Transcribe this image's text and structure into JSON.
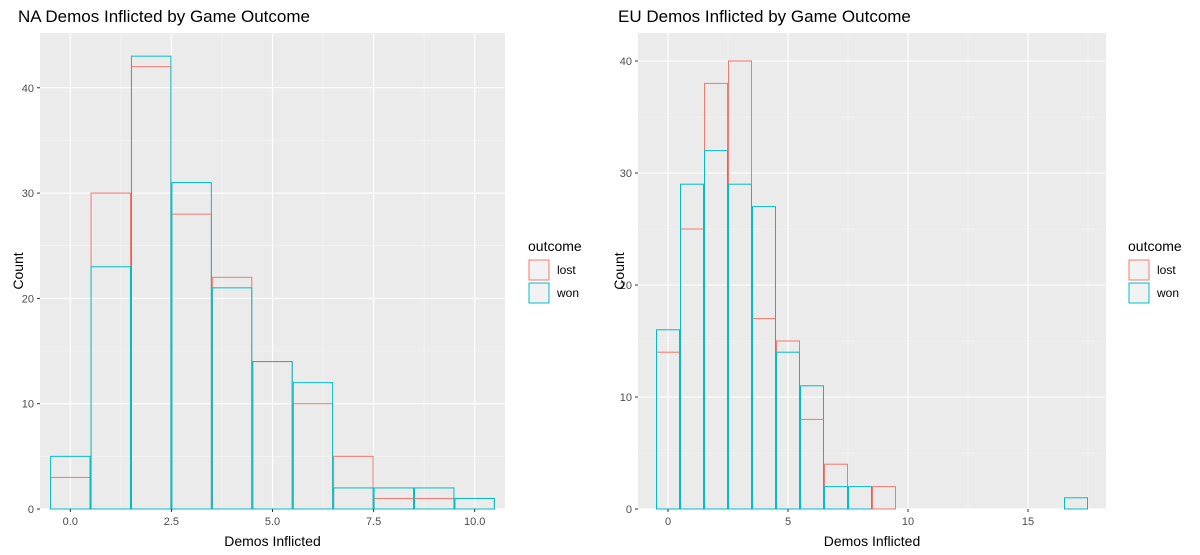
{
  "colors": {
    "panel": "#ebebeb",
    "grid_major": "#ffffff",
    "grid_minor": "#f5f5f5",
    "lost": "#f8766d",
    "won": "#00bfc4",
    "legend_key_fill": "#f2f2f2"
  },
  "legend": {
    "title": "outcome",
    "labels": [
      "lost",
      "won"
    ],
    "placement": "right"
  },
  "chart_data": [
    {
      "type": "bar",
      "title": "NA Demos Inflicted by Game Outcome",
      "xlabel": "Demos Inflicted",
      "ylabel": "Count",
      "xlim": [
        -0.75,
        10.75
      ],
      "ylim": [
        0,
        45.2
      ],
      "x_ticks": [
        0,
        2.5,
        5,
        7.5,
        10
      ],
      "x_tick_labels": [
        "0.0",
        "2.5",
        "5.0",
        "7.5",
        "10.0"
      ],
      "y_ticks": [
        0,
        10,
        20,
        30,
        40
      ],
      "y_tick_labels": [
        "0",
        "10",
        "20",
        "30",
        "40"
      ],
      "bins": [
        0,
        1,
        2,
        3,
        4,
        5,
        6,
        7,
        8,
        9,
        10
      ],
      "series": [
        {
          "name": "lost",
          "values": [
            3,
            30,
            42,
            28,
            22,
            14,
            10,
            5,
            1,
            1,
            1
          ]
        },
        {
          "name": "won",
          "values": [
            5,
            23,
            43,
            31,
            21,
            14,
            12,
            2,
            2,
            2,
            1
          ]
        }
      ]
    },
    {
      "type": "bar",
      "title": "EU Demos Inflicted by Game Outcome",
      "xlabel": "Demos Inflicted",
      "ylabel": "Count",
      "xlim": [
        -1.25,
        18.25
      ],
      "ylim": [
        0,
        42.5
      ],
      "x_ticks": [
        0,
        5,
        10,
        15
      ],
      "x_tick_labels": [
        "0",
        "5",
        "10",
        "15"
      ],
      "y_ticks": [
        0,
        10,
        20,
        30,
        40
      ],
      "y_tick_labels": [
        "0",
        "10",
        "20",
        "30",
        "40"
      ],
      "bins": [
        0,
        1,
        2,
        3,
        4,
        5,
        6,
        7,
        8,
        9,
        10,
        11,
        12,
        13,
        14,
        15,
        16,
        17
      ],
      "series": [
        {
          "name": "lost",
          "values": [
            14,
            25,
            38,
            40,
            17,
            15,
            8,
            4,
            0,
            2,
            0,
            0,
            0,
            0,
            0,
            0,
            0,
            0
          ]
        },
        {
          "name": "won",
          "values": [
            16,
            29,
            32,
            29,
            27,
            14,
            11,
            2,
            2,
            0,
            0,
            0,
            0,
            0,
            0,
            0,
            0,
            1
          ]
        }
      ]
    }
  ]
}
